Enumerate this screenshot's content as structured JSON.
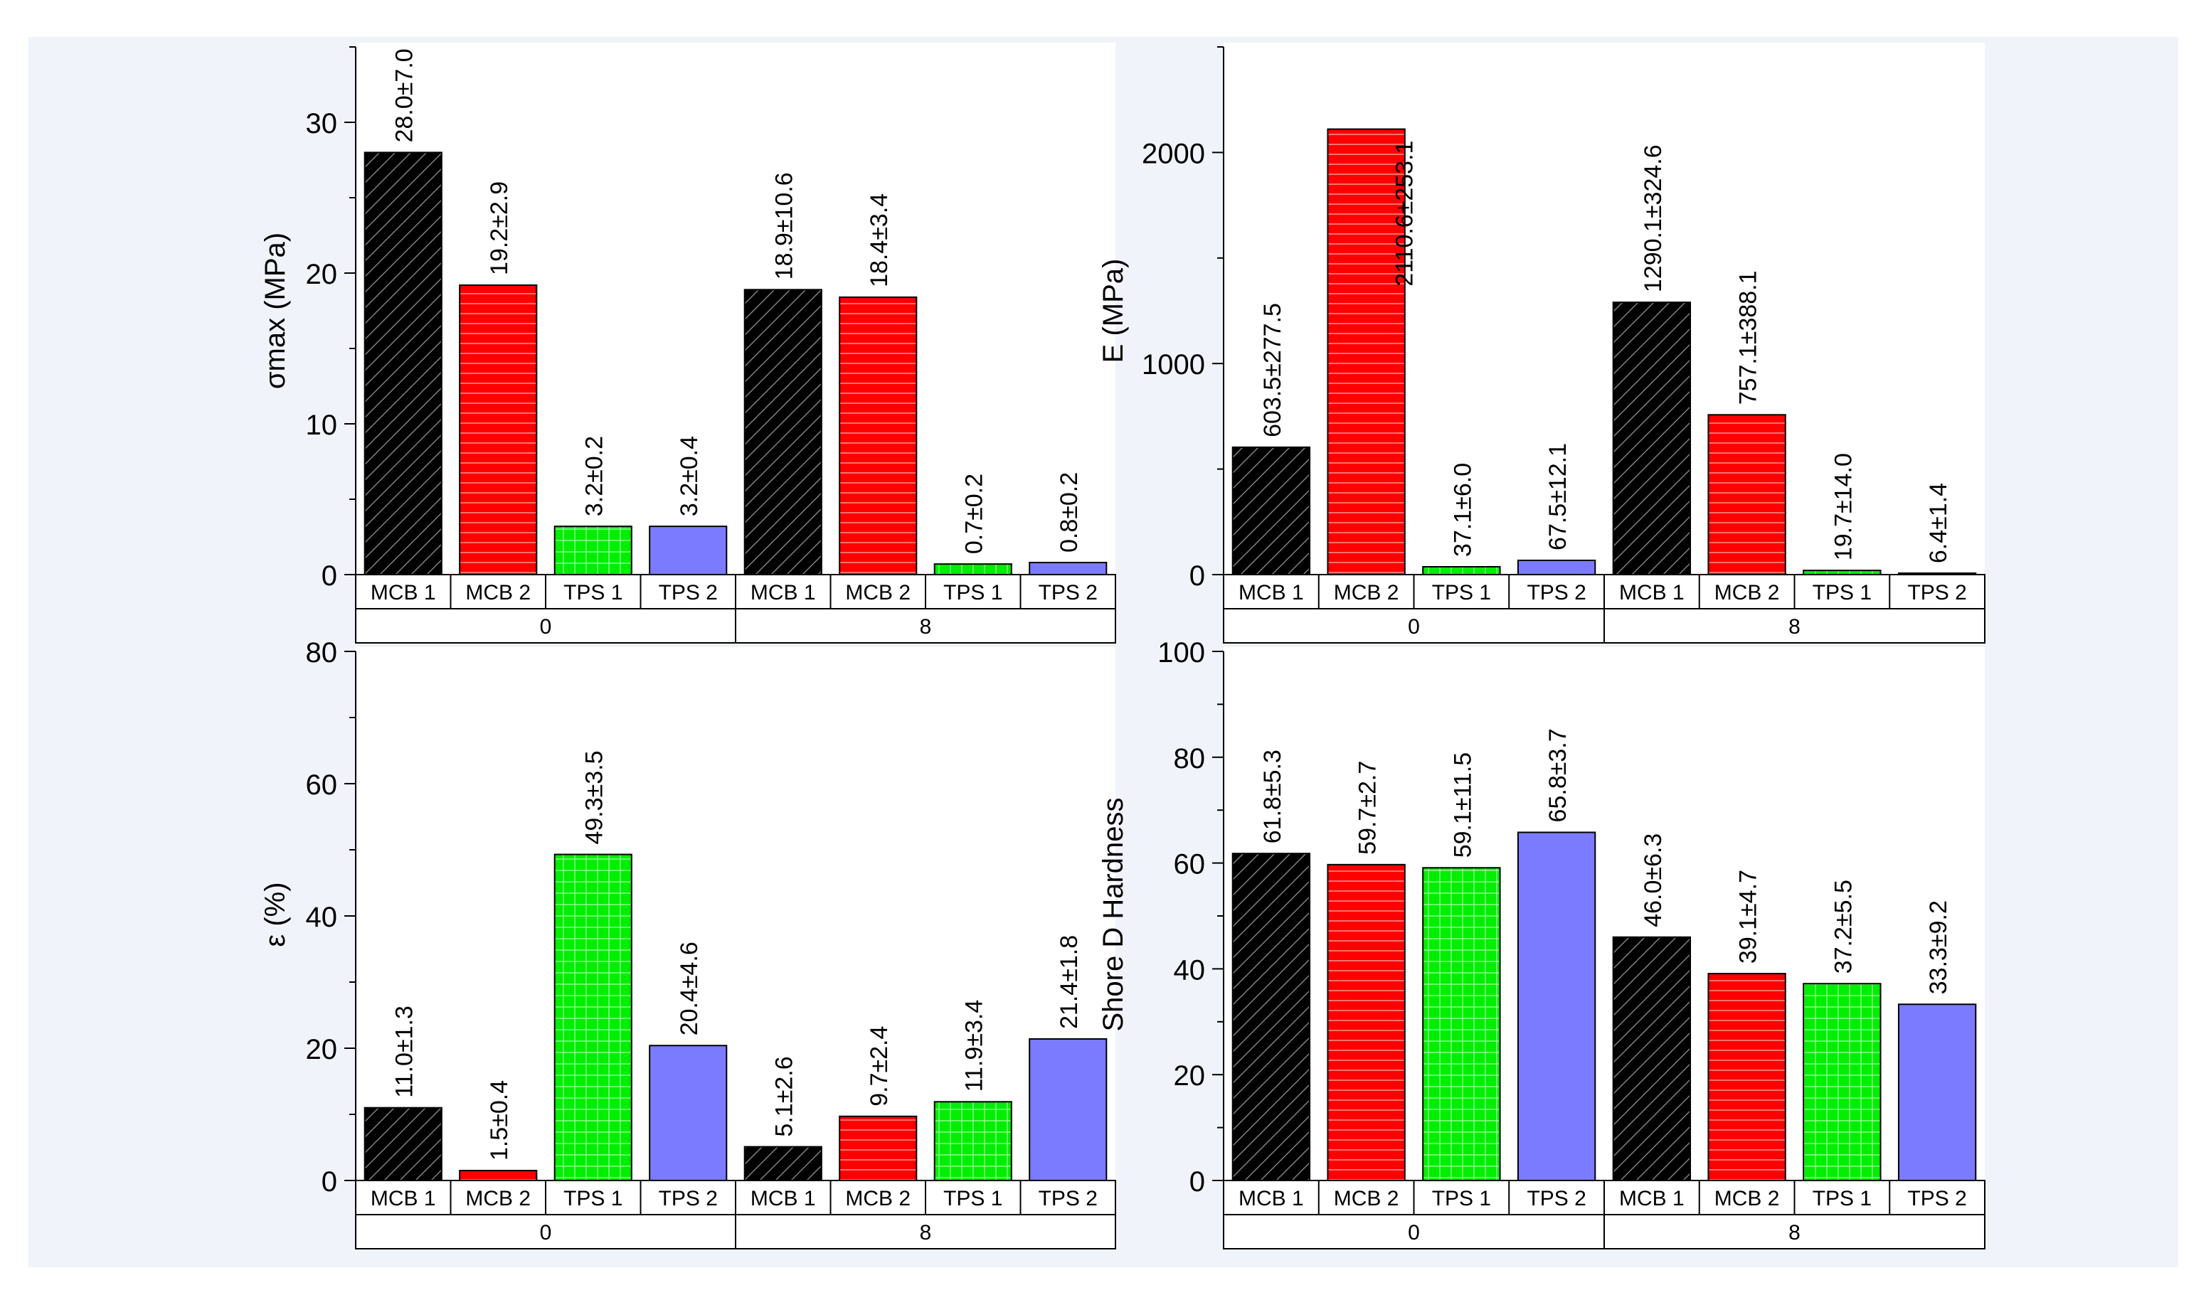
{
  "colors": {
    "background": "#f1f3fa",
    "panel": "#ffffff",
    "MCB 1": "#000000",
    "MCB 2": "#ff0000",
    "TPS 1": "#00ee00",
    "TPS 2": "#7b7bff"
  },
  "chart_data": [
    {
      "id": "sigma",
      "type": "bar",
      "ylabel": "σmax (MPa)",
      "ylim": [
        0,
        35
      ],
      "yticks": [
        0,
        10,
        20,
        30
      ],
      "groups": [
        "0",
        "8"
      ],
      "categories": [
        "MCB 1",
        "MCB 2",
        "TPS 1",
        "TPS 2",
        "MCB 1",
        "MCB 2",
        "TPS 1",
        "TPS 2"
      ],
      "values": [
        28.0,
        19.2,
        3.2,
        3.2,
        18.9,
        18.4,
        0.7,
        0.8
      ],
      "labels": [
        "28.0±7.0",
        "19.2±2.9",
        "3.2±0.2",
        "3.2±0.4",
        "18.9±10.6",
        "18.4±3.4",
        "0.7±0.2",
        "0.8±0.2"
      ]
    },
    {
      "id": "modulus",
      "type": "bar",
      "ylabel": "E (MPa)",
      "ylim": [
        0,
        2500
      ],
      "yticks": [
        0,
        1000,
        2000
      ],
      "groups": [
        "0",
        "8"
      ],
      "categories": [
        "MCB 1",
        "MCB 2",
        "TPS 1",
        "TPS 2",
        "MCB 1",
        "MCB 2",
        "TPS 1",
        "TPS 2"
      ],
      "values": [
        603.5,
        2110.6,
        37.1,
        67.5,
        1290.1,
        757.1,
        19.7,
        6.4
      ],
      "labels": [
        "603.5±277.5",
        "2110.6±253.1",
        "37.1±6.0",
        "67.5±12.1",
        "1290.1±324.6",
        "757.1±388.1",
        "19.7±14.0",
        "6.4±1.4"
      ]
    },
    {
      "id": "strain",
      "type": "bar",
      "ylabel": "ε (%)",
      "ylim": [
        0,
        80
      ],
      "yticks": [
        0,
        20,
        40,
        60,
        80
      ],
      "groups": [
        "0",
        "8"
      ],
      "categories": [
        "MCB 1",
        "MCB 2",
        "TPS 1",
        "TPS 2",
        "MCB 1",
        "MCB 2",
        "TPS 1",
        "TPS 2"
      ],
      "values": [
        11.0,
        1.5,
        49.3,
        20.4,
        5.1,
        9.7,
        11.9,
        21.4
      ],
      "labels": [
        "11.0±1.3",
        "1.5±0.4",
        "49.3±3.5",
        "20.4±4.6",
        "5.1±2.6",
        "9.7±2.4",
        "11.9±3.4",
        "21.4±1.8"
      ]
    },
    {
      "id": "hardness",
      "type": "bar",
      "ylabel": "Shore D Hardness",
      "ylim": [
        0,
        100
      ],
      "yticks": [
        0,
        20,
        40,
        60,
        80,
        100
      ],
      "groups": [
        "0",
        "8"
      ],
      "categories": [
        "MCB 1",
        "MCB 2",
        "TPS 1",
        "TPS 2",
        "MCB 1",
        "MCB 2",
        "TPS 1",
        "TPS 2"
      ],
      "values": [
        61.8,
        59.7,
        59.1,
        65.8,
        46.0,
        39.1,
        37.2,
        33.3
      ],
      "labels": [
        "61.8±5.3",
        "59.7±2.7",
        "59.1±11.5",
        "65.8±3.7",
        "46.0±6.3",
        "39.1±4.7",
        "37.2±5.5",
        "33.3±9.2"
      ]
    }
  ]
}
